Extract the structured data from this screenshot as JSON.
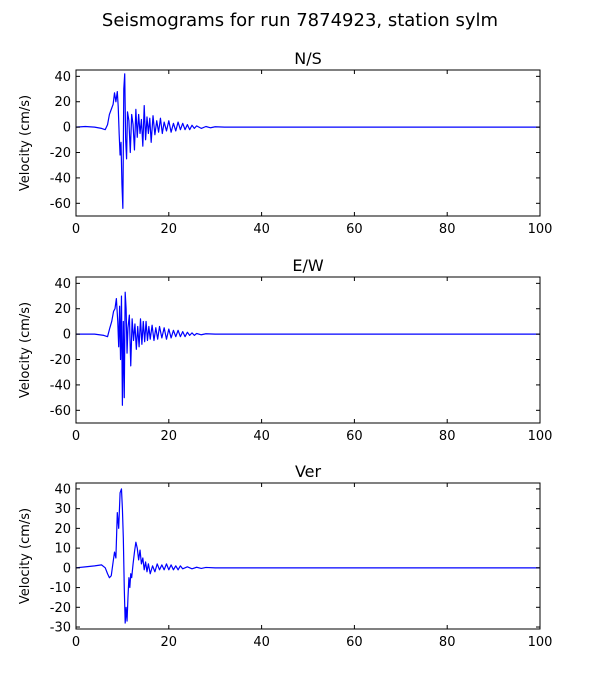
{
  "figure": {
    "title": "Seismograms for run 7874923, station sylm"
  },
  "style": {
    "line_color": "#0000ff",
    "axis_color": "#000000",
    "background": "#ffffff"
  },
  "chart_data": [
    {
      "type": "line",
      "title": "N/S",
      "xlabel": "",
      "ylabel": "Velocity (cm/s)",
      "xlim": [
        0,
        100
      ],
      "ylim": [
        -70,
        45
      ],
      "xticks": [
        0,
        20,
        40,
        60,
        80,
        100
      ],
      "yticks": [
        -60,
        -40,
        -20,
        0,
        20,
        40
      ],
      "grid": false,
      "series": [
        {
          "x": [
            0,
            2,
            4,
            5.5,
            6.3,
            6.8,
            7.2,
            7.6,
            8.0,
            8.3,
            8.6,
            8.9,
            9.1,
            9.3,
            9.5,
            9.7,
            9.9,
            10.1,
            10.3,
            10.5,
            10.7,
            10.9,
            11.1,
            11.4,
            11.7,
            12.0,
            12.3,
            12.6,
            12.9,
            13.2,
            13.5,
            13.8,
            14.1,
            14.4,
            14.7,
            15.0,
            15.3,
            15.6,
            15.9,
            16.2,
            16.6,
            17.0,
            17.4,
            17.8,
            18.2,
            18.6,
            19.0,
            19.5,
            20.0,
            20.5,
            21.0,
            21.5,
            22.0,
            22.5,
            23.0,
            23.5,
            24.0,
            24.5,
            25.0,
            25.5,
            26.0,
            27.0,
            28.0,
            29.0,
            30.0,
            32.0,
            35.0,
            40.0,
            100.0
          ],
          "y": [
            0,
            0.5,
            0,
            -1,
            -2,
            2,
            10,
            14,
            18,
            27,
            20,
            28,
            16,
            -5,
            -22,
            -12,
            -45,
            -64,
            30,
            42,
            -10,
            -25,
            12,
            5,
            -20,
            10,
            2,
            -18,
            14,
            -8,
            10,
            -5,
            6,
            -15,
            17,
            -10,
            8,
            -5,
            7,
            -12,
            9,
            -6,
            5,
            -4,
            7,
            -5,
            4,
            -3,
            5,
            -4,
            3,
            -3,
            4,
            -2,
            3,
            -2,
            2,
            -2,
            1.5,
            -1,
            1,
            -1,
            0.5,
            -0.5,
            0.3,
            0,
            0,
            0,
            0
          ]
        }
      ]
    },
    {
      "type": "line",
      "title": "E/W",
      "xlabel": "",
      "ylabel": "Velocity (cm/s)",
      "xlim": [
        0,
        100
      ],
      "ylim": [
        -70,
        45
      ],
      "xticks": [
        0,
        20,
        40,
        60,
        80,
        100
      ],
      "yticks": [
        -60,
        -40,
        -20,
        0,
        20,
        40
      ],
      "grid": false,
      "series": [
        {
          "x": [
            0,
            2,
            4,
            6.0,
            6.8,
            7.3,
            7.7,
            8.1,
            8.4,
            8.7,
            9.0,
            9.2,
            9.4,
            9.6,
            9.8,
            10.0,
            10.2,
            10.4,
            10.6,
            10.8,
            11.0,
            11.2,
            11.5,
            11.8,
            12.1,
            12.4,
            12.7,
            13.0,
            13.3,
            13.6,
            13.9,
            14.2,
            14.5,
            14.8,
            15.1,
            15.4,
            15.7,
            16.0,
            16.4,
            16.8,
            17.2,
            17.6,
            18.0,
            18.5,
            19.0,
            19.5,
            20.0,
            20.5,
            21.0,
            21.5,
            22.0,
            22.5,
            23.0,
            23.5,
            24.0,
            24.5,
            25.0,
            25.5,
            26.0,
            27.0,
            28.0,
            30.0,
            35.0,
            40.0,
            100.0
          ],
          "y": [
            0,
            0,
            0,
            -1,
            -2,
            5,
            10,
            18,
            20,
            28,
            10,
            -10,
            22,
            -20,
            30,
            -56,
            10,
            -50,
            33,
            20,
            -15,
            5,
            15,
            -25,
            12,
            -5,
            8,
            -12,
            6,
            -10,
            12,
            -8,
            10,
            -6,
            10,
            -5,
            6,
            -4,
            7,
            -5,
            5,
            -4,
            6,
            -3,
            5,
            -4,
            4,
            -3,
            3,
            -2,
            3,
            -2,
            2,
            -2,
            1.5,
            -1,
            1,
            -1,
            0.5,
            -0.5,
            0.3,
            0,
            0,
            0,
            0
          ]
        }
      ]
    },
    {
      "type": "line",
      "title": "Ver",
      "xlabel": "",
      "ylabel": "Velocity (cm/s)",
      "xlim": [
        0,
        100
      ],
      "ylim": [
        -31,
        43
      ],
      "xticks": [
        0,
        20,
        40,
        60,
        80,
        100
      ],
      "yticks": [
        -30,
        -20,
        -10,
        0,
        10,
        20,
        30,
        40
      ],
      "grid": false,
      "series": [
        {
          "x": [
            0,
            2,
            4,
            5.5,
            6.3,
            6.8,
            7.2,
            7.6,
            8.0,
            8.3,
            8.6,
            8.9,
            9.2,
            9.5,
            9.8,
            10.0,
            10.2,
            10.4,
            10.6,
            10.8,
            11.0,
            11.2,
            11.4,
            11.6,
            11.8,
            12.0,
            12.3,
            12.6,
            12.9,
            13.2,
            13.5,
            13.8,
            14.1,
            14.4,
            14.7,
            15.0,
            15.3,
            15.6,
            16.0,
            16.5,
            17.0,
            17.5,
            18.0,
            18.5,
            19.0,
            19.5,
            20.0,
            20.5,
            21.0,
            21.5,
            22.0,
            22.5,
            23.0,
            24.0,
            25.0,
            26.0,
            27.0,
            28.0,
            30.0,
            35.0,
            40.0,
            100.0
          ],
          "y": [
            0,
            0.5,
            1,
            1.5,
            0,
            -3,
            -5,
            -4,
            3,
            8,
            5,
            28,
            20,
            38,
            40,
            30,
            15,
            -10,
            -28,
            -20,
            -27,
            -15,
            -5,
            -10,
            -3,
            -5,
            2,
            8,
            13,
            10,
            4,
            9,
            2,
            5,
            -1,
            3,
            -2,
            2,
            -3,
            1,
            -2,
            2,
            -1,
            1.5,
            -1,
            2,
            -1,
            1.5,
            -1,
            1,
            -1,
            1,
            -0.5,
            0.5,
            -0.5,
            0.3,
            -0.3,
            0.2,
            0,
            0,
            0,
            0
          ]
        }
      ]
    }
  ]
}
